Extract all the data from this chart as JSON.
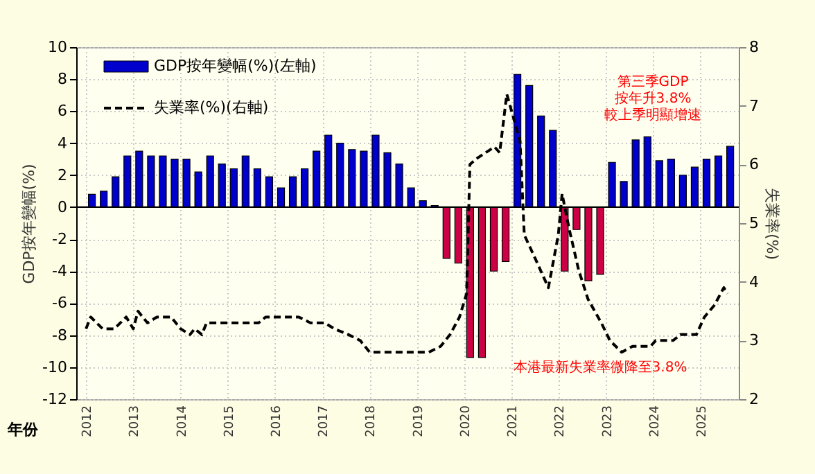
{
  "chart_data": {
    "type": "bar",
    "xlabel": "年份",
    "ylabel": "GDP按年變幅(%)",
    "y2label": "失業率(%)",
    "xlim": [
      2011.94,
      2025.66
    ],
    "xticks": [
      2012,
      2013,
      2014,
      2015,
      2016,
      2017,
      2018,
      2019,
      2020,
      2021,
      2022,
      2023,
      2024,
      2025
    ],
    "ylim": [
      -12,
      10
    ],
    "yticks": [
      -12,
      -10,
      -8,
      -6,
      -4,
      -2,
      0,
      2,
      4,
      6,
      8,
      10
    ],
    "y2lim": [
      2,
      8
    ],
    "y2ticks": [
      2,
      3,
      4,
      5,
      6,
      7,
      8
    ],
    "grid": true,
    "legend": "top left",
    "ref_lines": [
      {
        "axis": "y",
        "value": 0,
        "color": "#000000"
      }
    ],
    "annotations": [
      "第三季GDP\n按年升3.8%\n較上季明顯增速",
      "本港最新失業率微降至3.8%"
    ],
    "series": [
      {
        "name": "GDP按年變幅(%)(左軸)",
        "color": "#0000cc",
        "x": [
          2012.125,
          2012.375,
          2012.625,
          2012.875,
          2013.125,
          2013.375,
          2013.625,
          2013.875,
          2014.125,
          2014.375,
          2014.625,
          2014.875,
          2015.125,
          2015.375,
          2015.625,
          2015.875,
          2016.125,
          2016.375,
          2016.625,
          2016.875,
          2017.125,
          2017.375,
          2017.625,
          2017.875,
          2018.125,
          2018.375,
          2018.625,
          2018.875,
          2019.125,
          2019.375,
          2019.625,
          2019.875,
          2020.125,
          2020.375,
          2020.625,
          2020.875,
          2021.125,
          2021.375,
          2021.625,
          2021.875,
          2022.125,
          2022.375,
          2022.625,
          2022.875,
          2023.125,
          2023.375,
          2023.625,
          2023.875,
          2024.125,
          2024.375,
          2024.625,
          2024.875,
          2025.125,
          2025.375,
          2025.625
        ],
        "values": [
          0.8,
          1.0,
          1.9,
          3.2,
          3.5,
          3.2,
          3.2,
          3.0,
          3.0,
          2.2,
          3.2,
          2.7,
          2.4,
          3.2,
          2.4,
          1.9,
          1.2,
          1.9,
          2.4,
          3.5,
          4.5,
          4.0,
          3.6,
          3.5,
          4.5,
          3.4,
          2.7,
          1.2,
          0.4,
          0.1,
          -3.2,
          -3.5,
          -9.4,
          -9.4,
          -4.0,
          -3.4,
          8.3,
          7.6,
          5.7,
          4.8,
          -4.0,
          -1.4,
          -4.6,
          -4.2,
          2.8,
          1.6,
          4.2,
          4.4,
          2.9,
          3.0,
          2.0,
          2.5,
          3.0,
          3.2,
          3.8
        ],
        "colors": [
          "#0000cc",
          "#0000cc",
          "#0000cc",
          "#0000cc",
          "#0000cc",
          "#0000cc",
          "#0000cc",
          "#0000cc",
          "#0000cc",
          "#0000cc",
          "#0000cc",
          "#0000cc",
          "#0000cc",
          "#0000cc",
          "#0000cc",
          "#0000cc",
          "#0000cc",
          "#0000cc",
          "#0000cc",
          "#0000cc",
          "#0000cc",
          "#0000cc",
          "#0000cc",
          "#0000cc",
          "#0000cc",
          "#0000cc",
          "#0000cc",
          "#0000cc",
          "#0000cc",
          "#0000cc",
          "#cc0044",
          "#cc0044",
          "#cc0044",
          "#cc0044",
          "#cc0044",
          "#cc0044",
          "#0000cc",
          "#0000cc",
          "#0000cc",
          "#0000cc",
          "#cc0044",
          "#cc0044",
          "#cc0044",
          "#cc0044",
          "#0000cc",
          "#0000cc",
          "#0000cc",
          "#0000cc",
          "#0000cc",
          "#0000cc",
          "#0000cc",
          "#0000cc",
          "#0000cc",
          "#0000cc",
          "#0000cc"
        ]
      },
      {
        "name": "失業率(%)(右軸)",
        "type": "line",
        "axis": "y2",
        "color": "#000000",
        "line_style": "dashed",
        "x": [
          2012.0,
          2012.1,
          2012.35,
          2012.6,
          2012.85,
          2013.0,
          2013.1,
          2013.3,
          2013.5,
          2013.8,
          2014.0,
          2014.2,
          2014.3,
          2014.45,
          2014.55,
          2015.65,
          2015.8,
          2016.5,
          2016.75,
          2017.05,
          2017.25,
          2017.55,
          2017.8,
          2018.0,
          2019.25,
          2019.5,
          2019.7,
          2019.9,
          2020.05,
          2020.12,
          2020.26,
          2020.45,
          2020.64,
          2020.75,
          2020.9,
          2021.18,
          2021.27,
          2021.5,
          2021.78,
          2021.99,
          2022.07,
          2022.22,
          2022.42,
          2022.62,
          2022.9,
          2023.08,
          2023.33,
          2023.56,
          2023.94,
          2024.05,
          2024.42,
          2024.57,
          2024.91,
          2025.08,
          2025.29,
          2025.49,
          2025.57
        ],
        "values": [
          3.2,
          3.4,
          3.2,
          3.2,
          3.4,
          3.2,
          3.5,
          3.3,
          3.4,
          3.4,
          3.2,
          3.1,
          3.2,
          3.1,
          3.3,
          3.3,
          3.4,
          3.4,
          3.3,
          3.3,
          3.2,
          3.1,
          3.0,
          2.8,
          2.8,
          2.9,
          3.1,
          3.4,
          3.8,
          6.0,
          6.1,
          6.2,
          6.3,
          6.2,
          7.2,
          6.4,
          4.8,
          4.4,
          3.9,
          4.8,
          5.5,
          4.9,
          4.2,
          3.7,
          3.3,
          3.0,
          2.8,
          2.9,
          2.9,
          3.0,
          3.0,
          3.1,
          3.1,
          3.4,
          3.6,
          3.9,
          3.8
        ]
      }
    ]
  }
}
